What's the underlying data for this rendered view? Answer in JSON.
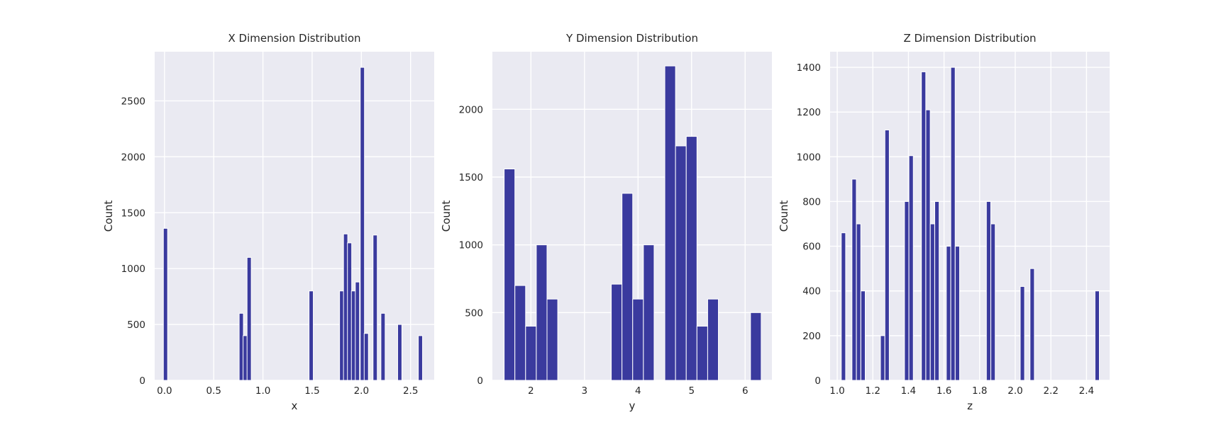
{
  "chart_data": [
    {
      "type": "bar",
      "title": "X Dimension Distribution",
      "xlabel": "x",
      "ylabel": "Count",
      "xlim": [
        -0.1,
        2.74
      ],
      "ylim": [
        0,
        2940
      ],
      "xticks": [
        0.0,
        0.5,
        1.0,
        1.5,
        2.0,
        2.5
      ],
      "xtick_labels": [
        "0.0",
        "0.5",
        "1.0",
        "1.5",
        "2.0",
        "2.5"
      ],
      "yticks": [
        0,
        500,
        1000,
        1500,
        2000,
        2500
      ],
      "ytick_labels": [
        "0",
        "500",
        "1000",
        "1500",
        "2000",
        "2500"
      ],
      "grid": true,
      "bar_color": "#3a3a9e",
      "background_color": "#eaeaf2",
      "bin_width": 0.043,
      "bins": [
        {
          "x": 0.01,
          "count": 1360
        },
        {
          "x": 0.78,
          "count": 600
        },
        {
          "x": 0.82,
          "count": 400
        },
        {
          "x": 0.86,
          "count": 1100
        },
        {
          "x": 1.49,
          "count": 800
        },
        {
          "x": 1.8,
          "count": 800
        },
        {
          "x": 1.84,
          "count": 1310
        },
        {
          "x": 1.88,
          "count": 1230
        },
        {
          "x": 1.92,
          "count": 800
        },
        {
          "x": 1.96,
          "count": 880
        },
        {
          "x": 2.01,
          "count": 2800
        },
        {
          "x": 2.05,
          "count": 420
        },
        {
          "x": 2.14,
          "count": 1300
        },
        {
          "x": 2.22,
          "count": 600
        },
        {
          "x": 2.39,
          "count": 500
        },
        {
          "x": 2.6,
          "count": 400
        }
      ]
    },
    {
      "type": "bar",
      "title": "Y Dimension Distribution",
      "xlabel": "y",
      "ylabel": "Count",
      "xlim": [
        1.28,
        6.5
      ],
      "ylim": [
        0,
        2425
      ],
      "xticks": [
        2,
        3,
        4,
        5,
        6
      ],
      "xtick_labels": [
        "2",
        "3",
        "4",
        "5",
        "6"
      ],
      "yticks": [
        0,
        500,
        1000,
        1500,
        2000
      ],
      "ytick_labels": [
        "0",
        "500",
        "1000",
        "1500",
        "2000"
      ],
      "grid": true,
      "bar_color": "#3a3a9e",
      "background_color": "#eaeaf2",
      "bin_width": 0.2,
      "bins": [
        {
          "x": 1.6,
          "count": 1560
        },
        {
          "x": 1.8,
          "count": 700
        },
        {
          "x": 2.0,
          "count": 400
        },
        {
          "x": 2.2,
          "count": 1000
        },
        {
          "x": 2.4,
          "count": 600
        },
        {
          "x": 3.6,
          "count": 710
        },
        {
          "x": 3.8,
          "count": 1380
        },
        {
          "x": 4.0,
          "count": 600
        },
        {
          "x": 4.2,
          "count": 1000
        },
        {
          "x": 4.6,
          "count": 2320
        },
        {
          "x": 4.8,
          "count": 1730
        },
        {
          "x": 5.0,
          "count": 1800
        },
        {
          "x": 5.2,
          "count": 400
        },
        {
          "x": 5.4,
          "count": 600
        },
        {
          "x": 6.2,
          "count": 500
        }
      ]
    },
    {
      "type": "bar",
      "title": "Z Dimension Distribution",
      "xlabel": "z",
      "ylabel": "Count",
      "xlim": [
        0.96,
        2.53
      ],
      "ylim": [
        0,
        1470
      ],
      "xticks": [
        1.0,
        1.2,
        1.4,
        1.6,
        1.8,
        2.0,
        2.2,
        2.4
      ],
      "xtick_labels": [
        "1.0",
        "1.2",
        "1.4",
        "1.6",
        "1.8",
        "2.0",
        "2.2",
        "2.4"
      ],
      "yticks": [
        0,
        200,
        400,
        600,
        800,
        1000,
        1200,
        1400
      ],
      "ytick_labels": [
        "0",
        "200",
        "400",
        "600",
        "800",
        "1000",
        "1200",
        "1400"
      ],
      "grid": true,
      "bar_color": "#3a3a9e",
      "background_color": "#eaeaf2",
      "bin_width": 0.0245,
      "bins": [
        {
          "x": 1.035,
          "count": 660
        },
        {
          "x": 1.095,
          "count": 900
        },
        {
          "x": 1.12,
          "count": 700
        },
        {
          "x": 1.145,
          "count": 400
        },
        {
          "x": 1.255,
          "count": 200
        },
        {
          "x": 1.28,
          "count": 1120
        },
        {
          "x": 1.39,
          "count": 800
        },
        {
          "x": 1.415,
          "count": 1005
        },
        {
          "x": 1.485,
          "count": 1380
        },
        {
          "x": 1.51,
          "count": 1210
        },
        {
          "x": 1.535,
          "count": 700
        },
        {
          "x": 1.56,
          "count": 800
        },
        {
          "x": 1.625,
          "count": 600
        },
        {
          "x": 1.65,
          "count": 1400
        },
        {
          "x": 1.675,
          "count": 600
        },
        {
          "x": 1.85,
          "count": 800
        },
        {
          "x": 1.875,
          "count": 700
        },
        {
          "x": 2.04,
          "count": 420
        },
        {
          "x": 2.095,
          "count": 500
        },
        {
          "x": 2.46,
          "count": 400
        }
      ]
    }
  ]
}
